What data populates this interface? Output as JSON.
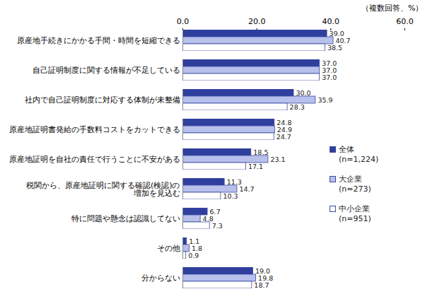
{
  "chart_data": {
    "type": "bar",
    "orientation": "horizontal",
    "xlabel": "（複数回答、%）",
    "categories": [
      "原産地手続きにかかる手間・時間を短縮できる",
      "自己証明制度に関する情報が不足している",
      "社内で自己証明制度に対応する体制が未整備",
      "原産地証明書発給の手数料コストをカットできる",
      "原産地証明を自社の責任で行うことに不安がある",
      "税関から、原産地証明に関する確認(検認)の\n増加を見込む",
      "特に問題や懸念は認識してない",
      "その他",
      "分からない"
    ],
    "series": [
      {
        "name": "全体\n(n=1,224)",
        "color": "#2e3f9e",
        "values": [
          39.0,
          37.0,
          30.0,
          24.8,
          18.5,
          11.3,
          6.7,
          1.1,
          19.0
        ],
        "value_labels": [
          "39.0",
          "37.0",
          "30.0",
          "24.8",
          "18.5",
          "11.3",
          "6.7",
          "1.1",
          "19.0"
        ]
      },
      {
        "name": "大企業\n(n=273)",
        "color": "#b8c0ec",
        "values": [
          40.7,
          37.0,
          35.9,
          24.9,
          23.1,
          14.7,
          4.8,
          1.8,
          19.8
        ],
        "value_labels": [
          "40.7",
          "37.0",
          "35.9",
          "24.9",
          "23.1",
          "14.7",
          "4.8",
          "1.8",
          "19.8"
        ]
      },
      {
        "name": "中小企業\n(n=951)",
        "color": "#ffffff",
        "values": [
          38.5,
          37.0,
          28.3,
          24.7,
          17.1,
          10.3,
          7.3,
          0.9,
          18.7
        ],
        "value_labels": [
          "38.5",
          "37.0",
          "28.3",
          "24.7",
          "17.1",
          "10.3",
          "7.3",
          "0.9",
          "18.7"
        ]
      }
    ],
    "xlim": [
      0,
      60
    ],
    "xticks": [
      {
        "value": 0,
        "label": "0.0"
      },
      {
        "value": 20,
        "label": "20.0"
      },
      {
        "value": 40,
        "label": "40.0"
      },
      {
        "value": 60,
        "label": "60.0"
      }
    ],
    "grid": false,
    "data_labels": true,
    "legend": "right"
  }
}
